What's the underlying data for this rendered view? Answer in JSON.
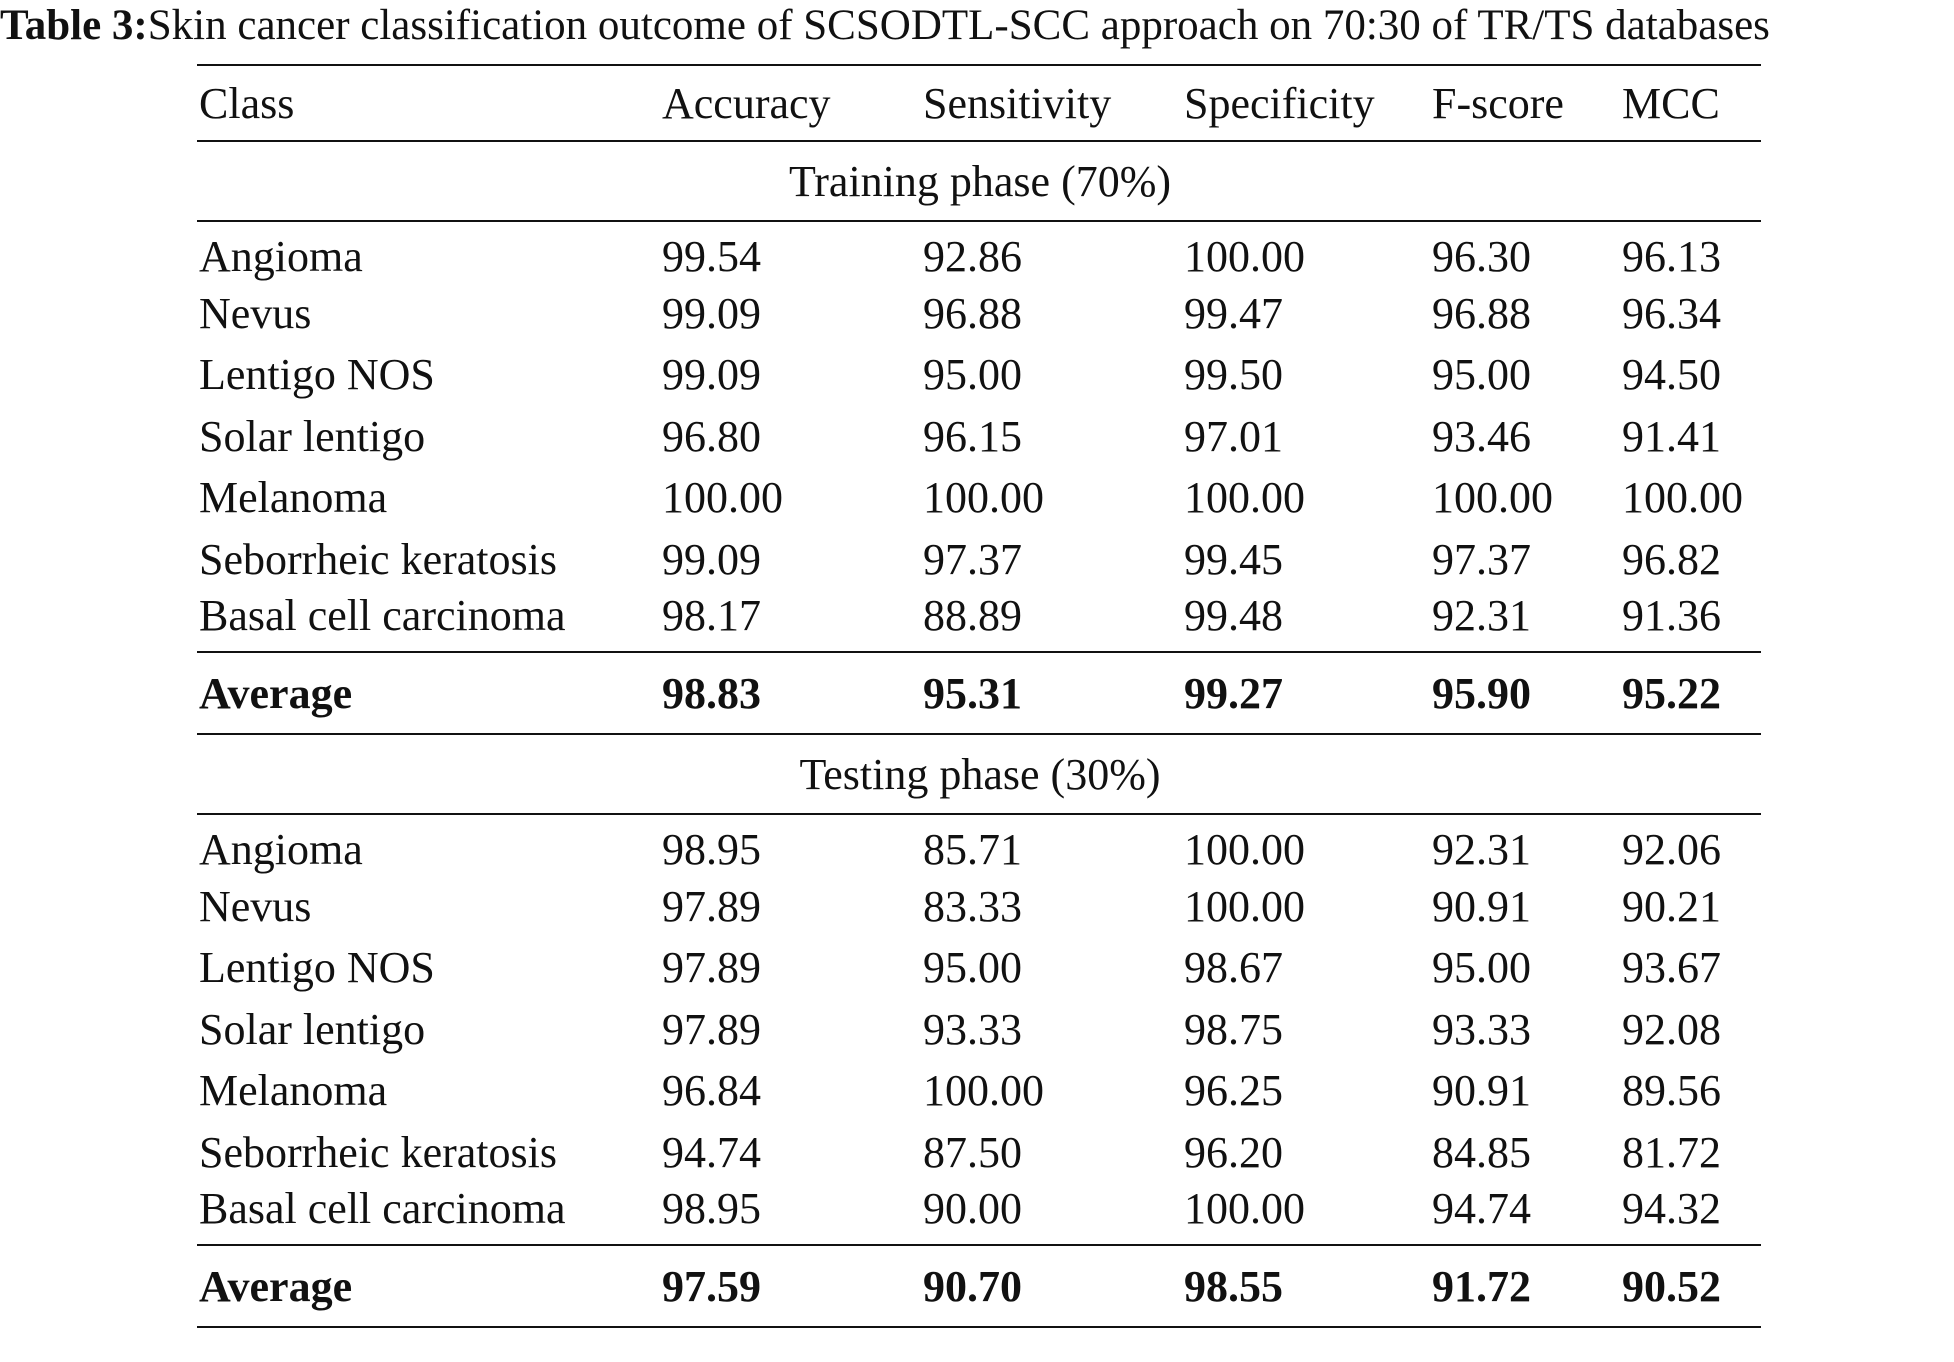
{
  "caption": {
    "label": "Table 3:",
    "text": "Skin cancer classification outcome of SCSODTL-SCC approach on 70:30 of TR/TS databases"
  },
  "table": {
    "headers": [
      "Class",
      "Accuracy",
      "Sensitivity",
      "Specificity",
      "F-score",
      "MCC"
    ],
    "sections": [
      {
        "title": "Training phase (70%)",
        "rows": [
          [
            "Angioma",
            "99.54",
            "92.86",
            "100.00",
            "96.30",
            "96.13"
          ],
          [
            "Nevus",
            "99.09",
            "96.88",
            "99.47",
            "96.88",
            "96.34"
          ],
          [
            "Lentigo NOS",
            "99.09",
            "95.00",
            "99.50",
            "95.00",
            "94.50"
          ],
          [
            "Solar lentigo",
            "96.80",
            "96.15",
            "97.01",
            "93.46",
            "91.41"
          ],
          [
            "Melanoma",
            "100.00",
            "100.00",
            "100.00",
            "100.00",
            "100.00"
          ],
          [
            "Seborrheic keratosis",
            "99.09",
            "97.37",
            "99.45",
            "97.37",
            "96.82"
          ],
          [
            "Basal cell carcinoma",
            "98.17",
            "88.89",
            "99.48",
            "92.31",
            "91.36"
          ]
        ],
        "average": [
          "Average",
          "98.83",
          "95.31",
          "99.27",
          "95.90",
          "95.22"
        ]
      },
      {
        "title": "Testing phase (30%)",
        "rows": [
          [
            "Angioma",
            "98.95",
            "85.71",
            "100.00",
            "92.31",
            "92.06"
          ],
          [
            "Nevus",
            "97.89",
            "83.33",
            "100.00",
            "90.91",
            "90.21"
          ],
          [
            "Lentigo NOS",
            "97.89",
            "95.00",
            "98.67",
            "95.00",
            "93.67"
          ],
          [
            "Solar lentigo",
            "97.89",
            "93.33",
            "98.75",
            "93.33",
            "92.08"
          ],
          [
            "Melanoma",
            "96.84",
            "100.00",
            "96.25",
            "90.91",
            "89.56"
          ],
          [
            "Seborrheic keratosis",
            "94.74",
            "87.50",
            "96.20",
            "84.85",
            "81.72"
          ],
          [
            "Basal cell carcinoma",
            "98.95",
            "90.00",
            "100.00",
            "94.74",
            "94.32"
          ]
        ],
        "average": [
          "Average",
          "97.59",
          "90.70",
          "98.55",
          "91.72",
          "90.52"
        ]
      }
    ]
  }
}
